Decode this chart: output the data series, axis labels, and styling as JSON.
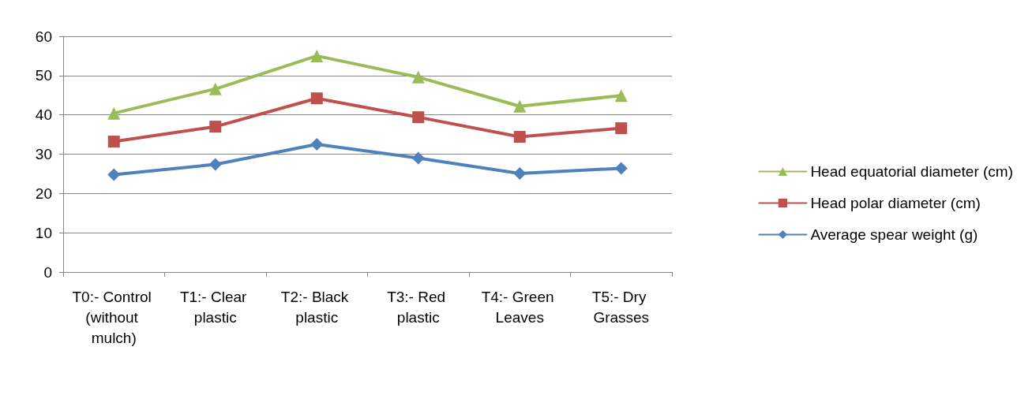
{
  "chart_data": {
    "type": "line",
    "categories": [
      "T0:- Control (without mulch)",
      "T1:- Clear plastic",
      "T2:- Black plastic",
      "T3:- Red plastic",
      "T4:- Green Leaves",
      "T5:- Dry Grasses"
    ],
    "series": [
      {
        "name": "Head equatorial diameter (cm)",
        "color": "#9bbb59",
        "marker": "triangle",
        "values": [
          40.4,
          46.6,
          55.0,
          49.6,
          42.2,
          44.9
        ]
      },
      {
        "name": "Head polar diameter (cm)",
        "color": "#c0504d",
        "marker": "square",
        "values": [
          33.2,
          37.0,
          44.2,
          39.4,
          34.4,
          36.6
        ]
      },
      {
        "name": "Average spear weight (g)",
        "color": "#4f81bd",
        "marker": "diamond",
        "values": [
          24.8,
          27.4,
          32.5,
          29.0,
          25.1,
          26.4
        ]
      }
    ],
    "ylim": [
      0,
      60
    ],
    "yticks": [
      0,
      10,
      20,
      30,
      40,
      50,
      60
    ],
    "grid": "y",
    "legend": "right",
    "line_style": "solid"
  }
}
